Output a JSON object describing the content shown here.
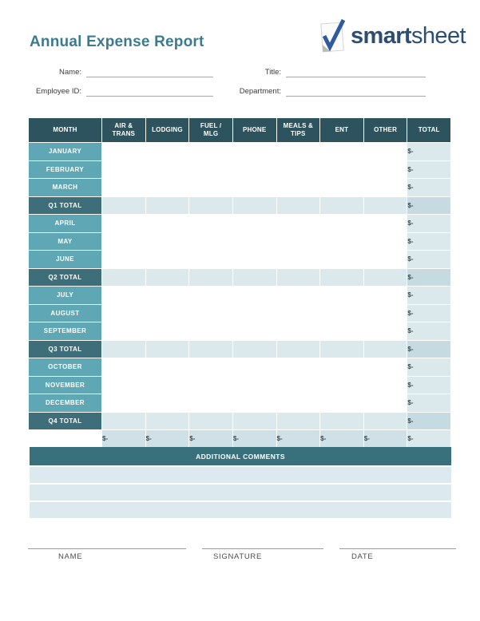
{
  "header": {
    "title": "Annual Expense Report",
    "brand_bold": "smart",
    "brand_light": "sheet"
  },
  "form": {
    "fields": [
      {
        "label": "Name:",
        "value": ""
      },
      {
        "label": "Title:",
        "value": ""
      },
      {
        "label": "Employee ID:",
        "value": ""
      },
      {
        "label": "Department:",
        "value": ""
      }
    ]
  },
  "table": {
    "headers": [
      "MONTH",
      "AIR &\nTRANS",
      "LODGING",
      "FUEL /\nMLG",
      "PHONE",
      "MEALS &\nTIPS",
      "ENT",
      "OTHER",
      "TOTAL"
    ],
    "rows": [
      {
        "label": "JANUARY",
        "type": "month",
        "cells": [
          "",
          "",
          "",
          "",
          "",
          "",
          ""
        ],
        "total": "$-"
      },
      {
        "label": "FEBRUARY",
        "type": "month",
        "cells": [
          "",
          "",
          "",
          "",
          "",
          "",
          ""
        ],
        "total": "$-"
      },
      {
        "label": "MARCH",
        "type": "month",
        "cells": [
          "",
          "",
          "",
          "",
          "",
          "",
          ""
        ],
        "total": "$-"
      },
      {
        "label": "Q1 TOTAL",
        "type": "quarter",
        "cells": [
          "",
          "",
          "",
          "",
          "",
          "",
          ""
        ],
        "total": "$-"
      },
      {
        "label": "APRIL",
        "type": "month",
        "cells": [
          "",
          "",
          "",
          "",
          "",
          "",
          ""
        ],
        "total": "$-"
      },
      {
        "label": "MAY",
        "type": "month",
        "cells": [
          "",
          "",
          "",
          "",
          "",
          "",
          ""
        ],
        "total": "$-"
      },
      {
        "label": "JUNE",
        "type": "month",
        "cells": [
          "",
          "",
          "",
          "",
          "",
          "",
          ""
        ],
        "total": "$-"
      },
      {
        "label": "Q2 TOTAL",
        "type": "quarter",
        "cells": [
          "",
          "",
          "",
          "",
          "",
          "",
          ""
        ],
        "total": "$-"
      },
      {
        "label": "JULY",
        "type": "month",
        "cells": [
          "",
          "",
          "",
          "",
          "",
          "",
          ""
        ],
        "total": "$-"
      },
      {
        "label": "AUGUST",
        "type": "month",
        "cells": [
          "",
          "",
          "",
          "",
          "",
          "",
          ""
        ],
        "total": "$-"
      },
      {
        "label": "SEPTEMBER",
        "type": "month",
        "cells": [
          "",
          "",
          "",
          "",
          "",
          "",
          ""
        ],
        "total": "$-"
      },
      {
        "label": "Q3 TOTAL",
        "type": "quarter",
        "cells": [
          "",
          "",
          "",
          "",
          "",
          "",
          ""
        ],
        "total": "$-"
      },
      {
        "label": "OCTOBER",
        "type": "month",
        "cells": [
          "",
          "",
          "",
          "",
          "",
          "",
          ""
        ],
        "total": "$-"
      },
      {
        "label": "NOVEMBER",
        "type": "month",
        "cells": [
          "",
          "",
          "",
          "",
          "",
          "",
          ""
        ],
        "total": "$-"
      },
      {
        "label": "DECEMBER",
        "type": "month",
        "cells": [
          "",
          "",
          "",
          "",
          "",
          "",
          ""
        ],
        "total": "$-"
      },
      {
        "label": "Q4 TOTAL",
        "type": "quarter",
        "cells": [
          "",
          "",
          "",
          "",
          "",
          "",
          ""
        ],
        "total": "$-"
      }
    ],
    "grand_total_row": {
      "label": "",
      "values": [
        "$-",
        "$-",
        "$-",
        "$-",
        "$-",
        "$-",
        "$-"
      ],
      "total": "$-"
    }
  },
  "comments": {
    "title": "ADDITIONAL COMMENTS",
    "rows": [
      "",
      "",
      ""
    ]
  },
  "signature": {
    "labels": [
      "NAME",
      "SIGNATURE",
      "DATE"
    ]
  },
  "colors": {
    "title-teal": "#3d7b8c",
    "brand-navy": "#2c4e72",
    "check-blue": "#2f5a9d",
    "thead-bg": "#2d545e",
    "quarter-teal": "#3e6e79",
    "month-teal": "#5fa7b4",
    "light-blue": "#dbe9ed",
    "mid-blue": "#c6dbe1",
    "grand-blue": "#cfe1e6",
    "comments-head": "#38707b",
    "comments-row": "#dceaef",
    "money-ink": "#3b4d54"
  }
}
